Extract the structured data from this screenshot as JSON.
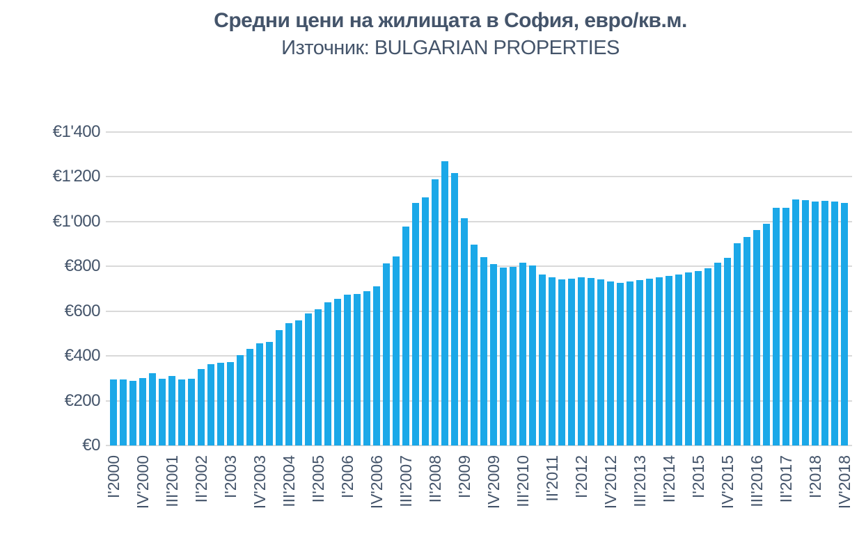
{
  "header": {
    "title": "Средни цени на жилищата в София, евро/кв.м.",
    "subtitle": "Източник: BULGARIAN PROPERTIES"
  },
  "chart_data": {
    "type": "bar",
    "title": "Средни цени на жилищата в София, евро/кв.м.",
    "subtitle": "Източник: BULGARIAN PROPERTIES",
    "unit": "евро/кв.м.",
    "ylim": [
      0,
      1400
    ],
    "y_tick_step": 200,
    "y_tick_labels": [
      "€0",
      "€200",
      "€400",
      "€600",
      "€800",
      "€1'000",
      "€1'200",
      "€1'400"
    ],
    "x_tick_labels": [
      "I'2000",
      "IV'2000",
      "III'2001",
      "II'2002",
      "I'2003",
      "IV'2003",
      "III'2004",
      "II'2005",
      "I'2006",
      "IV'2006",
      "III'2007",
      "II'2008",
      "I'2009",
      "IV'2009",
      "III'2010",
      "II'2011",
      "I'2012",
      "IV'2012",
      "III'2013",
      "II'2014",
      "I'2015",
      "IV'2015",
      "III'2016",
      "II'2017",
      "I'2018",
      "IV'2018"
    ],
    "x_tick_every": 3,
    "grid": "horizontal",
    "legend": "none",
    "bar_color": "#1BA8E8",
    "grid_color": "#D9D9D9",
    "text_color": "#44546A",
    "categories": [
      "I'2000",
      "II'2000",
      "III'2000",
      "IV'2000",
      "I'2001",
      "II'2001",
      "III'2001",
      "IV'2001",
      "I'2002",
      "II'2002",
      "III'2002",
      "IV'2002",
      "I'2003",
      "II'2003",
      "III'2003",
      "IV'2003",
      "I'2004",
      "II'2004",
      "III'2004",
      "IV'2004",
      "I'2005",
      "II'2005",
      "III'2005",
      "IV'2005",
      "I'2006",
      "II'2006",
      "III'2006",
      "IV'2006",
      "I'2007",
      "II'2007",
      "III'2007",
      "IV'2007",
      "I'2008",
      "II'2008",
      "III'2008",
      "IV'2008",
      "I'2009",
      "II'2009",
      "III'2009",
      "IV'2009",
      "I'2010",
      "II'2010",
      "III'2010",
      "IV'2010",
      "I'2011",
      "II'2011",
      "III'2011",
      "IV'2011",
      "I'2012",
      "II'2012",
      "III'2012",
      "IV'2012",
      "I'2013",
      "II'2013",
      "III'2013",
      "IV'2013",
      "I'2014",
      "II'2014",
      "III'2014",
      "IV'2014",
      "I'2015",
      "II'2015",
      "III'2015",
      "IV'2015",
      "I'2016",
      "II'2016",
      "III'2016",
      "IV'2016",
      "I'2017",
      "II'2017",
      "III'2017",
      "IV'2017",
      "I'2018",
      "II'2018",
      "III'2018",
      "IV'2018"
    ],
    "values": [
      295,
      295,
      290,
      300,
      322,
      298,
      310,
      294,
      298,
      343,
      362,
      371,
      372,
      403,
      433,
      455,
      462,
      516,
      545,
      559,
      591,
      608,
      641,
      656,
      675,
      677,
      688,
      712,
      812,
      845,
      977,
      1083,
      1108,
      1188,
      1270,
      1218,
      1016,
      898,
      840,
      810,
      795,
      797,
      815,
      803,
      763,
      750,
      743,
      744,
      752,
      747,
      741,
      733,
      727,
      734,
      740,
      746,
      752,
      757,
      763,
      772,
      780,
      791,
      816,
      838,
      902,
      932,
      962,
      990,
      1062,
      1063,
      1100,
      1096,
      1090,
      1093,
      1089,
      1083
    ]
  }
}
